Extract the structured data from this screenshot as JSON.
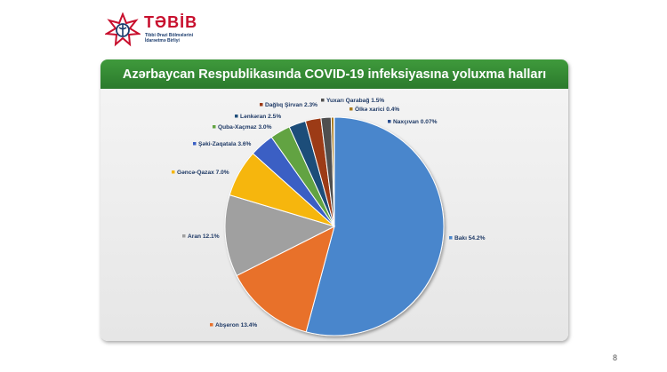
{
  "logo": {
    "name": "TƏBİB",
    "subtitle_lines": [
      "Tibbi Ərazi Bölmələrini",
      "İdarəetmə Birliyi"
    ],
    "icon": "tebib-star-emblem-icon",
    "color_primary": "#c8102e",
    "color_secondary": "#1c3d6e"
  },
  "page_number": "8",
  "chart_data": {
    "type": "pie",
    "title": "Azərbaycan Respublikasında COVID-19 infeksiyasına yoluxma halları",
    "legend": "none",
    "slices": [
      {
        "name": "Bakı",
        "value": 54.2,
        "label": "Bakı 54.2%",
        "color": "#4a86cc"
      },
      {
        "name": "Abşeron",
        "value": 13.4,
        "label": "Abşeron 13.4%",
        "color": "#e8712b"
      },
      {
        "name": "Aran",
        "value": 12.1,
        "label": "Aran 12.1%",
        "color": "#a0a0a0"
      },
      {
        "name": "Gəncə-Qazax",
        "value": 7.0,
        "label": "Gəncə-Qazax 7.0%",
        "color": "#f6b60c"
      },
      {
        "name": "Şəki-Zaqatala",
        "value": 3.6,
        "label": "Şəki-Zaqatala 3.6%",
        "color": "#3a5fc4"
      },
      {
        "name": "Quba-Xaçmaz",
        "value": 3.0,
        "label": "Quba-Xaçmaz 3.0%",
        "color": "#62a342"
      },
      {
        "name": "Lənkəran",
        "value": 2.5,
        "label": "Lənkəran 2.5%",
        "color": "#1f4e79"
      },
      {
        "name": "Dağlıq Şirvan",
        "value": 2.3,
        "label": "Dağlıq Şirvan 2.3%",
        "color": "#9c3a16"
      },
      {
        "name": "Yuxarı Qarabağ",
        "value": 1.5,
        "label": "Yuxarı Qarabağ 1.5%",
        "color": "#505050"
      },
      {
        "name": "Ölkə xarici",
        "value": 0.4,
        "label": "Ölkə xarici 0.4%",
        "color": "#a9791a"
      },
      {
        "name": "Naxçıvan",
        "value": 0.07,
        "label": "Naxçıvan 0.07%",
        "color": "#2a4d8f"
      }
    ]
  }
}
